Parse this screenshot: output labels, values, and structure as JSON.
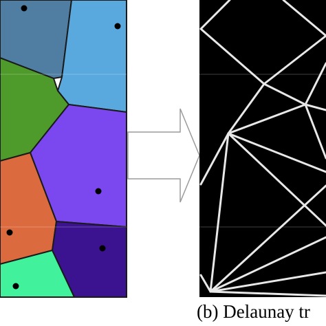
{
  "figure": {
    "caption_b": "(b) Delaunay tr"
  },
  "voronoi": {
    "cells": [
      {
        "name": "cell-blue-gray",
        "color": "#4f7ea2"
      },
      {
        "name": "cell-sky-blue",
        "color": "#5aa9de"
      },
      {
        "name": "cell-green",
        "color": "#4e9a2a"
      },
      {
        "name": "cell-violet",
        "color": "#7b48ef"
      },
      {
        "name": "cell-orange",
        "color": "#db6a3e"
      },
      {
        "name": "cell-indigo",
        "color": "#3b128f"
      },
      {
        "name": "cell-mint",
        "color": "#41f19c"
      }
    ]
  },
  "arrow": {
    "direction": "right"
  },
  "triangulation": {
    "background": "#000000",
    "edge_color": "#e8e8e8"
  }
}
